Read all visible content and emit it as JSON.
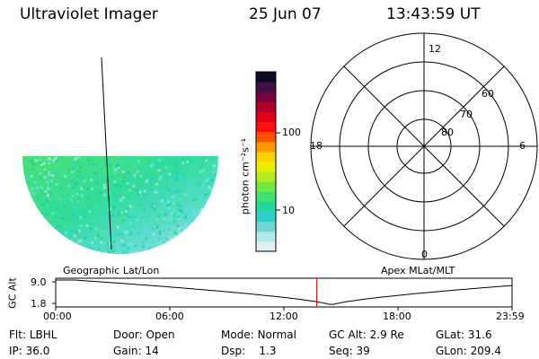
{
  "header": {
    "instrument": "Ultraviolet Imager",
    "date": "25 Jun 07",
    "time": "13:43:59  UT"
  },
  "image_panel": {
    "caption": "Geographic Lat/Lon"
  },
  "colorbar": {
    "unit_label": "photon cm⁻²s⁻¹",
    "ticks": [
      "100",
      "10"
    ],
    "colors": [
      "#e0f0f0",
      "#b0e8e8",
      "#70d8d8",
      "#30d0c8",
      "#20d8a0",
      "#40e070",
      "#70e840",
      "#b0ec20",
      "#e8f000",
      "#ffd000",
      "#ff9800",
      "#ff5000",
      "#ff1010",
      "#e00018",
      "#b0002a",
      "#78003c",
      "#401048",
      "#100828"
    ]
  },
  "polar_plot": {
    "caption": "Apex MLat/MLT",
    "mlt_labels": {
      "top": "12",
      "right": "6",
      "bottom": "0",
      "left": "18"
    },
    "lat_labels": [
      "60",
      "70",
      "80"
    ]
  },
  "timeline": {
    "axis_label": "GC Alt",
    "y_max": "9.0",
    "y_min": "1.8",
    "x_ticks": [
      "00:00",
      "06:00",
      "12:00",
      "18:00",
      "23:59"
    ],
    "current_time_hours": 13.73,
    "marker_color": "#c80000"
  },
  "status": {
    "flt_label": "Flt:",
    "flt_value": "LBHL",
    "ip_label": "IP:",
    "ip_value": "36.0",
    "door_label": "Door:",
    "door_value": "Open",
    "gain_label": "Gain:",
    "gain_value": "14",
    "mode_label": "Mode:",
    "mode_value": "Normal",
    "dsp_label": "Dsp:",
    "dsp_value": "1.3",
    "gcalt_label": "GC Alt:",
    "gcalt_value": "2.9 Re",
    "seq_label": "Seq:",
    "seq_value": "39",
    "glat_label": "GLat:",
    "glat_value": "31.6",
    "glon_label": "GLon:",
    "glon_value": "209.4"
  }
}
